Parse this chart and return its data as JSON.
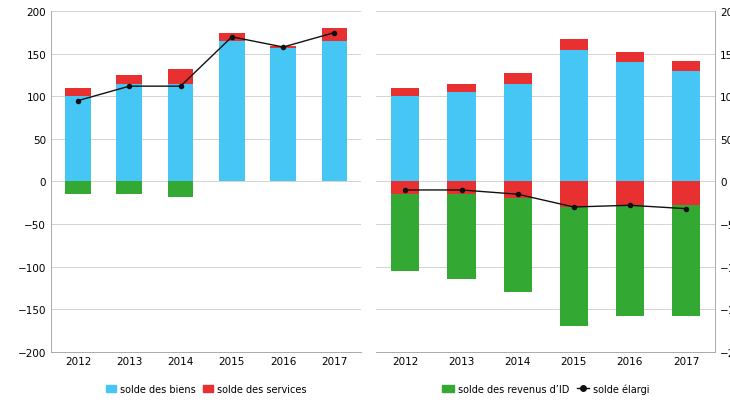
{
  "years": [
    2012,
    2013,
    2014,
    2015,
    2016,
    2017
  ],
  "left_biens": [
    100,
    115,
    115,
    165,
    157,
    165
  ],
  "left_services_pos": [
    10,
    10,
    17,
    10,
    2,
    15
  ],
  "left_services_neg": [
    -15,
    -15,
    -18,
    0,
    0,
    0
  ],
  "left_line": [
    95,
    112,
    112,
    170,
    158,
    175
  ],
  "right_biens": [
    100,
    105,
    115,
    155,
    140,
    130
  ],
  "right_services_pos": [
    10,
    10,
    13,
    12,
    12,
    12
  ],
  "right_services_neg": [
    -15,
    -15,
    -20,
    -30,
    -28,
    -28
  ],
  "right_green": [
    -90,
    -100,
    -110,
    -140,
    -130,
    -130
  ],
  "right_line": [
    -10,
    -10,
    -15,
    -30,
    -28,
    -32
  ],
  "ylim": [
    -200,
    200
  ],
  "yticks": [
    -200,
    -150,
    -100,
    -50,
    0,
    50,
    100,
    150,
    200
  ],
  "color_biens": "#45C6F5",
  "color_services": "#E83030",
  "color_green": "#33A833",
  "color_line": "#111111",
  "legend1_labels": [
    "solde des biens",
    "solde des services"
  ],
  "legend2_labels": [
    "solde des revenus d’ID",
    "solde élargi"
  ],
  "bar_width": 0.5,
  "tick_fontsize": 7.5,
  "legend_fontsize": 7
}
